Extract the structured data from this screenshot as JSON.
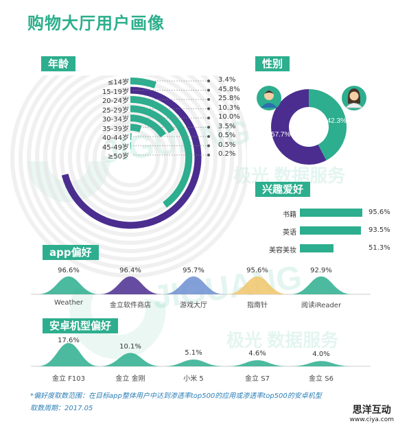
{
  "title": "购物大厅用户画像",
  "sections": {
    "age": "年龄",
    "gender": "性别",
    "interest": "兴趣爱好",
    "app": "app偏好",
    "phone": "安卓机型偏好"
  },
  "watermark": {
    "brand": "JIGUANG",
    "slogan": "极光 数据服务"
  },
  "colors": {
    "teal": "#2dae8e",
    "purple": "#4b2d8f",
    "lightgrid": "#e3e3e3"
  },
  "chart_data": [
    {
      "type": "bar",
      "name": "age",
      "categories": [
        "≤14岁",
        "15-19岁",
        "20-24岁",
        "25-29岁",
        "30-34岁",
        "35-39岁",
        "40-44岁",
        "45-49岁",
        "≥50岁"
      ],
      "values": [
        3.4,
        45.8,
        25.8,
        10.3,
        10.0,
        3.5,
        0.5,
        0.5,
        0.2
      ],
      "value_labels": [
        "3.4%",
        "45.8%",
        "25.8%",
        "10.3%",
        "10.0%",
        "3.5%",
        "0.5%",
        "0.5%",
        "0.2%"
      ]
    },
    {
      "type": "pie",
      "name": "gender",
      "categories": [
        "male",
        "female"
      ],
      "values": [
        57.7,
        42.3
      ],
      "value_labels": [
        "57.7%",
        "42.3%"
      ]
    },
    {
      "type": "bar",
      "name": "interest",
      "categories": [
        "书籍",
        "英语",
        "美容美妆"
      ],
      "values": [
        95.6,
        93.5,
        51.3
      ],
      "value_labels": [
        "95.6%",
        "93.5%",
        "51.3%"
      ]
    },
    {
      "type": "area",
      "name": "app",
      "categories": [
        "Weather",
        "金立软件商店",
        "游戏大厅",
        "指南针",
        "阅读iReader"
      ],
      "values": [
        96.6,
        96.4,
        95.7,
        95.6,
        92.9
      ],
      "value_labels": [
        "96.6%",
        "96.4%",
        "95.7%",
        "95.6%",
        "92.9%"
      ]
    },
    {
      "type": "area",
      "name": "phone",
      "categories": [
        "金立 F103",
        "金立 金刚",
        "小米 5",
        "金立 S7",
        "金立 S6"
      ],
      "values": [
        17.6,
        10.1,
        5.1,
        4.6,
        4.0
      ],
      "value_labels": [
        "17.6%",
        "10.1%",
        "5.1%",
        "4.6%",
        "4.0%"
      ]
    }
  ],
  "footnote": {
    "line1": "*偏好度取数范围：在目标app整体用户中达到渗透率top500的应用或渗透率top500的安卓机型",
    "line2": "取数周期：2017.05"
  },
  "corner_logo": {
    "cn": "思洋互动",
    "url": "www.ciya.com"
  }
}
